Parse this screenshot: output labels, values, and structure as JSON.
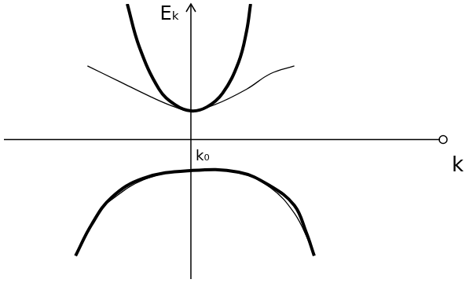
{
  "chart_data": {
    "type": "line",
    "x_label": "k",
    "y_label": "Eₖ",
    "annotations": [
      {
        "text": "k₀",
        "x": 0,
        "y": 0
      }
    ],
    "xlim": [
      -2.35,
      3.2
    ],
    "ylim": [
      -1.8,
      1.75
    ],
    "xticks": [],
    "yticks": [],
    "tick_labels": false,
    "grid": false,
    "series": [
      {
        "color": "#000000",
        "line_style": "thick",
        "marker": "none",
        "x": [
          -0.8,
          -0.65,
          -0.4,
          -0.2,
          0,
          0.2,
          0.4,
          0.6,
          0.7,
          0.75
        ],
        "values": [
          1.75,
          1.2,
          0.65,
          0.45,
          0.37,
          0.42,
          0.6,
          1.0,
          1.4,
          1.75
        ]
      },
      {
        "color": "#000000",
        "line_style": "thin",
        "marker": "none",
        "x": [
          -1.3,
          -0.9,
          -0.5,
          -0.2,
          0,
          0.3,
          0.7,
          1.0,
          1.3
        ],
        "values": [
          0.95,
          0.75,
          0.55,
          0.42,
          0.37,
          0.45,
          0.65,
          0.85,
          0.95
        ]
      },
      {
        "color": "#000000",
        "line_style": "thick",
        "marker": "none",
        "x": [
          -1.45,
          -1.25,
          -1.0,
          -0.6,
          0,
          0.6,
          1.0,
          1.3,
          1.45,
          1.55
        ],
        "values": [
          -1.5,
          -1.1,
          -0.75,
          -0.5,
          -0.4,
          -0.42,
          -0.6,
          -0.85,
          -1.2,
          -1.5
        ]
      },
      {
        "color": "#000000",
        "line_style": "thin",
        "marker": "none",
        "x": [
          -1.1,
          -0.6,
          0,
          0.6,
          1.0,
          1.3,
          1.5
        ],
        "values": [
          -0.85,
          -0.52,
          -0.4,
          -0.43,
          -0.62,
          -0.95,
          -1.35
        ]
      }
    ]
  }
}
